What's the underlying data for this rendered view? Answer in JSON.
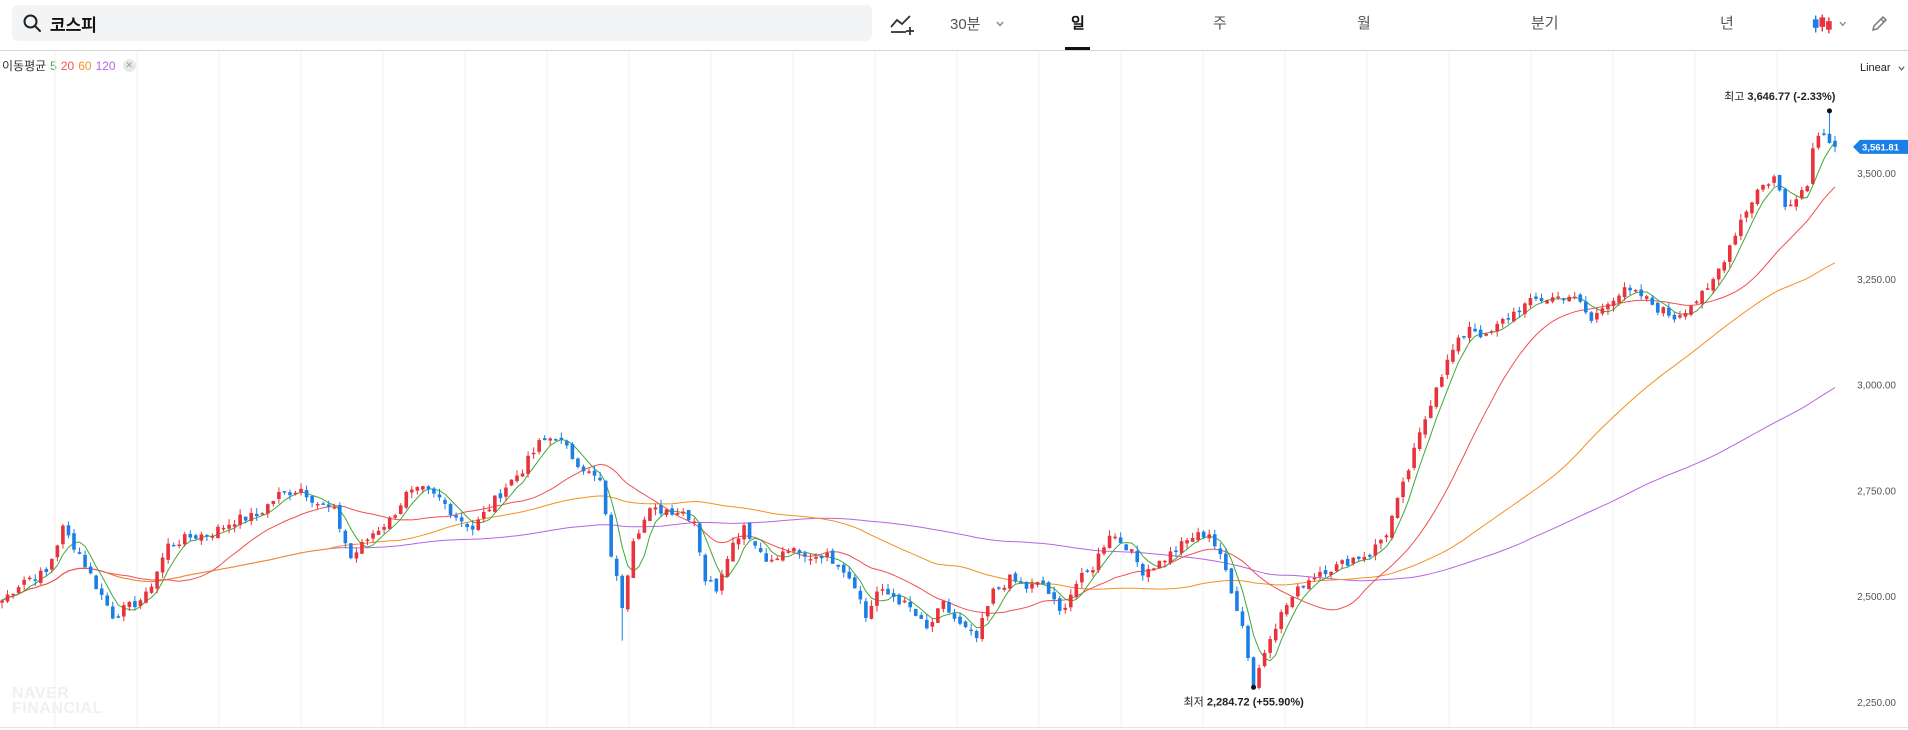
{
  "search": {
    "query": "코스피"
  },
  "toolbar": {
    "interval_label": "30분",
    "tabs": [
      {
        "label": "일",
        "active": true
      },
      {
        "label": "주",
        "active": false
      },
      {
        "label": "월",
        "active": false
      },
      {
        "label": "분기",
        "active": false
      },
      {
        "label": "년",
        "active": false
      }
    ]
  },
  "legend": {
    "title": "이동평균",
    "items": [
      {
        "label": "5",
        "color": "#3fa93a"
      },
      {
        "label": "20",
        "color": "#f05050"
      },
      {
        "label": "60",
        "color": "#f5901e"
      },
      {
        "label": "120",
        "color": "#b565e3"
      }
    ]
  },
  "scale_label": "Linear",
  "watermark": {
    "line1": "NAVER",
    "line2": "FINANCIAL"
  },
  "colors": {
    "up": "#e8333c",
    "down": "#1b7fe6",
    "price_tag": "#1b7fe6"
  },
  "chart_data": {
    "type": "candlestick",
    "ylim": [
      2220,
      3760
    ],
    "y_ticks": [
      2250,
      2500,
      2750,
      3000,
      3250,
      3500
    ],
    "y_tick_labels": [
      "2,250.00",
      "2,500.00",
      "2,750.00",
      "3,000.00",
      "3,250.00",
      "3,500.00"
    ],
    "current_price_label": "3,561.81",
    "max_marker": {
      "prefix": "최고",
      "label": "3,646.77 (-2.33%)",
      "value": 3646.77
    },
    "min_marker": {
      "prefix": "최저",
      "label": "2,284.72 (+55.90%)",
      "value": 2284.72
    },
    "close_path": [
      [
        0,
        2490
      ],
      [
        4,
        2540
      ],
      [
        8,
        2555
      ],
      [
        11,
        2660
      ],
      [
        14,
        2600
      ],
      [
        17,
        2525
      ],
      [
        20,
        2455
      ],
      [
        23,
        2475
      ],
      [
        26,
        2500
      ],
      [
        30,
        2620
      ],
      [
        34,
        2640
      ],
      [
        38,
        2650
      ],
      [
        42,
        2680
      ],
      [
        46,
        2690
      ],
      [
        50,
        2740
      ],
      [
        54,
        2755
      ],
      [
        57,
        2720
      ],
      [
        60,
        2700
      ],
      [
        63,
        2590
      ],
      [
        67,
        2650
      ],
      [
        70,
        2680
      ],
      [
        73,
        2740
      ],
      [
        76,
        2750
      ],
      [
        79,
        2730
      ],
      [
        82,
        2690
      ],
      [
        85,
        2660
      ],
      [
        88,
        2710
      ],
      [
        91,
        2760
      ],
      [
        94,
        2800
      ],
      [
        97,
        2860
      ],
      [
        100,
        2880
      ],
      [
        103,
        2830
      ],
      [
        106,
        2790
      ],
      [
        108,
        2770
      ],
      [
        110,
        2600
      ],
      [
        112,
        2480
      ],
      [
        114,
        2640
      ],
      [
        117,
        2700
      ],
      [
        120,
        2705
      ],
      [
        123,
        2700
      ],
      [
        125,
        2680
      ],
      [
        127,
        2540
      ],
      [
        129,
        2520
      ],
      [
        131,
        2600
      ],
      [
        134,
        2670
      ],
      [
        136,
        2620
      ],
      [
        139,
        2580
      ],
      [
        142,
        2610
      ],
      [
        145,
        2590
      ],
      [
        148,
        2600
      ],
      [
        151,
        2580
      ],
      [
        154,
        2530
      ],
      [
        156,
        2450
      ],
      [
        158,
        2510
      ],
      [
        161,
        2500
      ],
      [
        164,
        2470
      ],
      [
        167,
        2420
      ],
      [
        170,
        2480
      ],
      [
        173,
        2430
      ],
      [
        176,
        2400
      ],
      [
        179,
        2510
      ],
      [
        182,
        2540
      ],
      [
        185,
        2520
      ],
      [
        188,
        2530
      ],
      [
        191,
        2460
      ],
      [
        194,
        2530
      ],
      [
        197,
        2570
      ],
      [
        200,
        2650
      ],
      [
        203,
        2620
      ],
      [
        206,
        2560
      ],
      [
        209,
        2580
      ],
      [
        212,
        2610
      ],
      [
        215,
        2640
      ],
      [
        218,
        2650
      ],
      [
        221,
        2560
      ],
      [
        224,
        2430
      ],
      [
        226,
        2290
      ],
      [
        229,
        2410
      ],
      [
        232,
        2480
      ],
      [
        235,
        2530
      ],
      [
        238,
        2560
      ],
      [
        241,
        2570
      ],
      [
        244,
        2590
      ],
      [
        247,
        2600
      ],
      [
        250,
        2650
      ],
      [
        253,
        2760
      ],
      [
        256,
        2880
      ],
      [
        259,
        3000
      ],
      [
        262,
        3080
      ],
      [
        265,
        3140
      ],
      [
        268,
        3110
      ],
      [
        271,
        3150
      ],
      [
        274,
        3180
      ],
      [
        277,
        3200
      ],
      [
        280,
        3205
      ],
      [
        283,
        3210
      ],
      [
        285,
        3190
      ],
      [
        287,
        3150
      ],
      [
        290,
        3200
      ],
      [
        293,
        3220
      ],
      [
        296,
        3210
      ],
      [
        299,
        3180
      ],
      [
        302,
        3160
      ],
      [
        305,
        3190
      ],
      [
        308,
        3220
      ],
      [
        311,
        3300
      ],
      [
        314,
        3390
      ],
      [
        317,
        3460
      ],
      [
        320,
        3490
      ],
      [
        322,
        3420
      ],
      [
        324,
        3450
      ],
      [
        326,
        3470
      ],
      [
        327,
        3570
      ],
      [
        329,
        3600
      ],
      [
        331,
        3561.81
      ]
    ]
  }
}
